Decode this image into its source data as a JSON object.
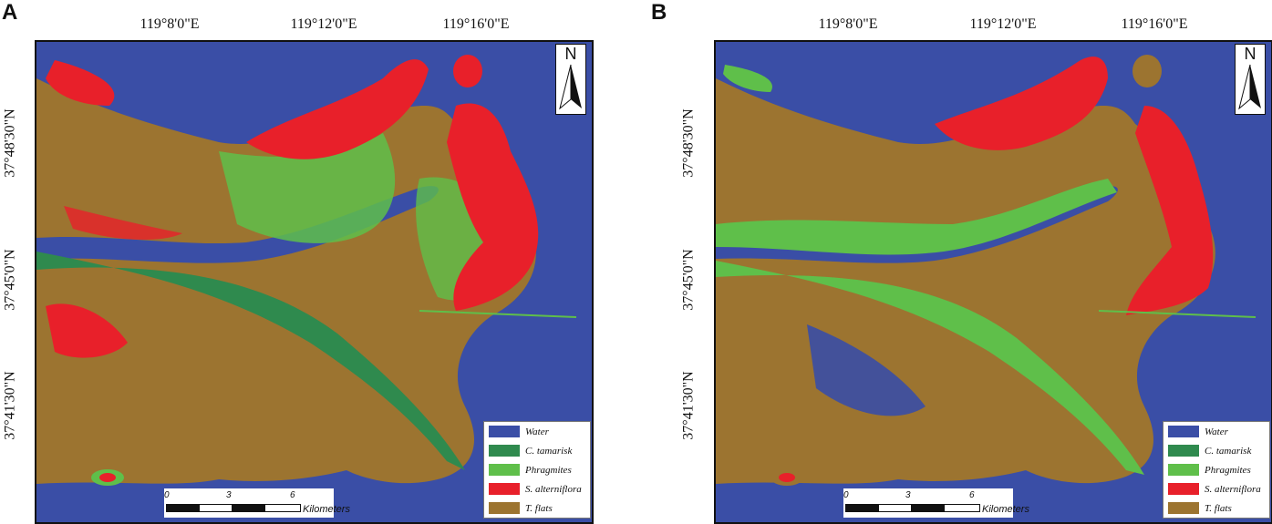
{
  "colors": {
    "water": "#3a4ea6",
    "tamarisk": "#2f8a4e",
    "phragmites": "#5fbf4a",
    "alterniflora": "#e8202a",
    "flats": "#9c7430"
  },
  "coords": {
    "top": [
      "119°8'0\"E",
      "119°12'0\"E",
      "119°16'0\"E"
    ],
    "left": [
      "37°48'30\"N",
      "37°45'0\"N",
      "37°41'30\"N"
    ]
  },
  "panels": [
    {
      "letter": "A"
    },
    {
      "letter": "B"
    }
  ],
  "north_label": "N",
  "legend": [
    {
      "label": "Water",
      "color": "#3a4ea6"
    },
    {
      "label": "C. tamarisk",
      "color": "#2f8a4e"
    },
    {
      "label": "Phragmites",
      "color": "#5fbf4a"
    },
    {
      "label": "S. alterniflora",
      "color": "#e8202a"
    },
    {
      "label": "T. flats",
      "color": "#9c7430"
    }
  ],
  "scale": {
    "ticks": [
      "0",
      "3",
      "6"
    ],
    "unit": "Kilometers"
  }
}
